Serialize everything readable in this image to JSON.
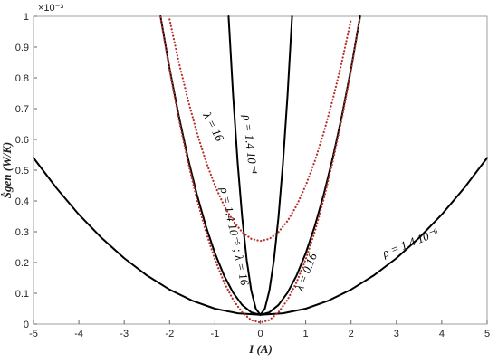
{
  "chart_data": {
    "type": "line",
    "xlabel": "I (A)",
    "ylabel": "Ṡgen (W/K)",
    "y_multiplier": "×10⁻³",
    "xlim": [
      -5,
      5
    ],
    "xticks": [
      -5,
      -4,
      -3,
      -2,
      -1,
      0,
      1,
      2,
      3,
      4,
      5
    ],
    "ylim": [
      0,
      1
    ],
    "yticks": [
      0,
      0.1,
      0.2,
      0.3,
      0.4,
      0.5,
      0.6,
      0.7,
      0.8,
      0.9,
      1
    ],
    "series": [
      {
        "name": "ρ = 1.4 10⁻⁶",
        "color": "#000000",
        "style": "solid",
        "x": [
          -5,
          -4.5,
          -4,
          -3.5,
          -3,
          -2.5,
          -2,
          -1.5,
          -1,
          -0.5,
          0,
          0.5,
          1,
          1.5,
          2,
          2.5,
          3,
          3.5,
          4,
          4.5,
          5
        ],
        "values": [
          0.54,
          0.443,
          0.356,
          0.28,
          0.214,
          0.158,
          0.112,
          0.076,
          0.05,
          0.035,
          0.03,
          0.035,
          0.05,
          0.076,
          0.112,
          0.158,
          0.214,
          0.28,
          0.356,
          0.443,
          0.54
        ]
      },
      {
        "name": "ρ = 1.4 10⁻⁵ ; λ = 16",
        "color": "#000000",
        "style": "solid",
        "x": [
          -2.2,
          -2,
          -1.8,
          -1.6,
          -1.4,
          -1.2,
          -1,
          -0.8,
          -0.6,
          -0.4,
          -0.2,
          0,
          0.2,
          0.4,
          0.6,
          0.8,
          1,
          1.2,
          1.4,
          1.6,
          1.8,
          2,
          2.2
        ],
        "values": [
          1,
          0.83,
          0.678,
          0.542,
          0.422,
          0.318,
          0.23,
          0.158,
          0.102,
          0.062,
          0.038,
          0.03,
          0.038,
          0.062,
          0.102,
          0.158,
          0.23,
          0.318,
          0.422,
          0.542,
          0.678,
          0.83,
          1
        ]
      },
      {
        "name": "ρ = 1.4 10⁻⁴",
        "color": "#000000",
        "style": "solid",
        "x": [
          -0.7,
          -0.6,
          -0.5,
          -0.4,
          -0.3,
          -0.2,
          -0.1,
          0,
          0.1,
          0.2,
          0.3,
          0.4,
          0.5,
          0.6,
          0.7
        ],
        "values": [
          1,
          0.743,
          0.525,
          0.347,
          0.208,
          0.109,
          0.05,
          0.03,
          0.05,
          0.109,
          0.208,
          0.347,
          0.525,
          0.743,
          1
        ]
      },
      {
        "name": "λ = 0.16",
        "color": "#b5302a",
        "style": "dotted",
        "x": [
          -2.2,
          -2,
          -1.8,
          -1.6,
          -1.4,
          -1.2,
          -1,
          -0.8,
          -0.6,
          -0.4,
          -0.2,
          0,
          0.2,
          0.4,
          0.6,
          0.8,
          1,
          1.2,
          1.4,
          1.6,
          1.8,
          2,
          2.2
        ],
        "values": [
          0.997,
          0.825,
          0.669,
          0.53,
          0.407,
          0.3,
          0.21,
          0.136,
          0.079,
          0.038,
          0.013,
          0.005,
          0.013,
          0.038,
          0.079,
          0.136,
          0.21,
          0.3,
          0.407,
          0.53,
          0.669,
          0.825,
          0.997
        ]
      },
      {
        "name": "λ = 16",
        "color": "#b5302a",
        "style": "dotted",
        "x": [
          -2,
          -1.8,
          -1.6,
          -1.4,
          -1.2,
          -1,
          -0.8,
          -0.6,
          -0.4,
          -0.2,
          0,
          0.2,
          0.4,
          0.6,
          0.8,
          1,
          1.2,
          1.4,
          1.6,
          1.8,
          2
        ],
        "values": [
          0.99,
          0.853,
          0.731,
          0.623,
          0.529,
          0.45,
          0.385,
          0.335,
          0.299,
          0.277,
          0.27,
          0.277,
          0.299,
          0.335,
          0.385,
          0.45,
          0.529,
          0.623,
          0.731,
          0.853,
          0.99
        ]
      }
    ]
  }
}
